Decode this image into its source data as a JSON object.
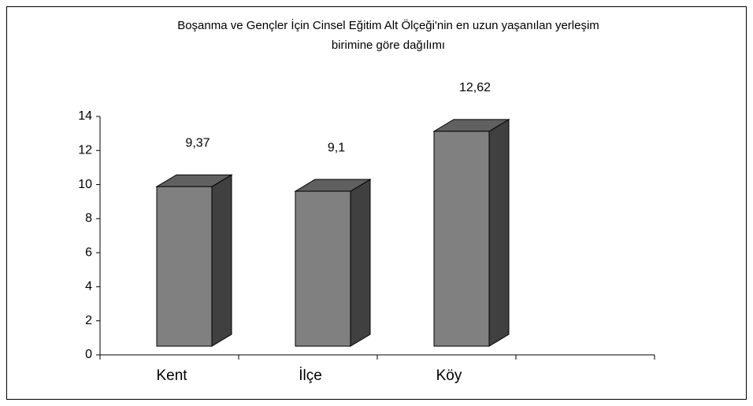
{
  "chart_data": {
    "type": "bar3d",
    "title": [
      "Boşanma ve Gençler İçin Cinsel Eğitim Alt Ölçeği'nin en uzun yaşanılan yerleşim",
      "birimine göre dağılımı"
    ],
    "categories": [
      "Kent",
      "İlçe",
      "Köy"
    ],
    "values": [
      9.37,
      9.1,
      12.62
    ],
    "value_labels": [
      "9,37",
      "9,1",
      "12,62"
    ],
    "color": "#808080",
    "ylim": [
      0,
      14
    ],
    "yticks": [
      0,
      2,
      4,
      6,
      8,
      10,
      12,
      14
    ],
    "grid": false
  }
}
